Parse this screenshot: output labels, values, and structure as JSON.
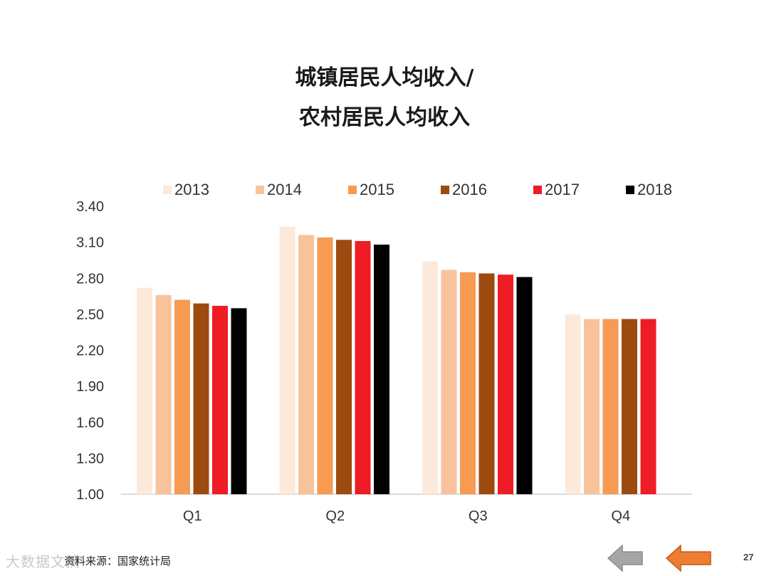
{
  "title": {
    "line1": "城镇居民人均收入/",
    "line2": "农村居民人均收入"
  },
  "source": "资料来源：国家统计局",
  "watermark": "大数据文摘",
  "page_number": "27",
  "colors": {
    "2013": "#fde9da",
    "2014": "#f8c39b",
    "2015": "#f79a52",
    "2016": "#9d4a0f",
    "2017": "#ee1c25",
    "2018": "#000000",
    "axis": "#d0d0d0",
    "nav_back": "#a6a6a6",
    "nav_fwd": "#ed7d31"
  },
  "chart_data": {
    "type": "bar",
    "title": "城镇居民人均收入/农村居民人均收入",
    "categories": [
      "Q1",
      "Q2",
      "Q3",
      "Q4"
    ],
    "series": [
      {
        "name": "2013",
        "values": [
          2.72,
          3.23,
          2.94,
          2.5
        ]
      },
      {
        "name": "2014",
        "values": [
          2.66,
          3.16,
          2.87,
          2.46
        ]
      },
      {
        "name": "2015",
        "values": [
          2.62,
          3.14,
          2.85,
          2.46
        ]
      },
      {
        "name": "2016",
        "values": [
          2.59,
          3.12,
          2.84,
          2.46
        ]
      },
      {
        "name": "2017",
        "values": [
          2.57,
          3.11,
          2.83,
          2.46
        ]
      },
      {
        "name": "2018",
        "values": [
          2.55,
          3.08,
          2.81,
          null
        ]
      }
    ],
    "yticks": [
      "1.00",
      "1.30",
      "1.60",
      "1.90",
      "2.20",
      "2.50",
      "2.80",
      "3.10",
      "3.40"
    ],
    "ylim": [
      1.0,
      3.4
    ],
    "legend_position": "top",
    "grid": false
  }
}
